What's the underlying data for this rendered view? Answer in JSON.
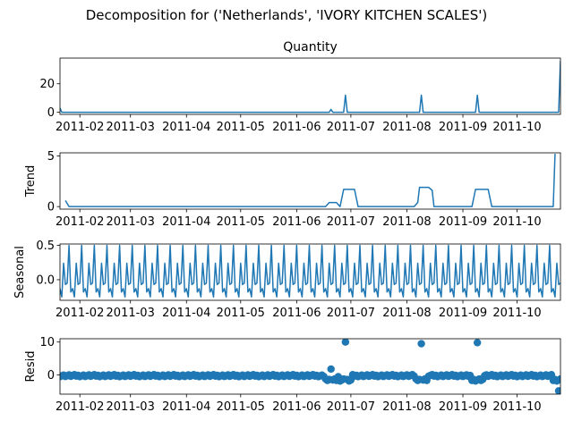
{
  "title": "Decomposition for ('Netherlands', 'IVORY KITCHEN SCALES')",
  "color": "#1f77b4",
  "chart_data": [
    {
      "type": "line",
      "title": "Quantity",
      "ylabel": "",
      "x_range": [
        "2011-01-21",
        "2011-10-25"
      ],
      "ylim": [
        -1.5,
        38
      ],
      "yticks": [
        0,
        20
      ],
      "spikes": [
        {
          "date": "2011-06-20",
          "value": 2
        },
        {
          "date": "2011-06-28",
          "value": 12
        },
        {
          "date": "2011-08-09",
          "value": 12
        },
        {
          "date": "2011-09-09",
          "value": 12
        }
      ],
      "edges": {
        "start": 3,
        "end": 36
      }
    },
    {
      "type": "line",
      "title": "",
      "ylabel": "Trend",
      "ylim": [
        -0.25,
        5.3
      ],
      "yticks": [
        0,
        5
      ],
      "points": [
        [
          "2011-01-24",
          0.6
        ],
        [
          "2011-01-26",
          0
        ],
        [
          "2011-06-17",
          0
        ],
        [
          "2011-06-19",
          0.4
        ],
        [
          "2011-06-23",
          0.4
        ],
        [
          "2011-06-25",
          0
        ],
        [
          "2011-06-27",
          1.7
        ],
        [
          "2011-07-03",
          1.7
        ],
        [
          "2011-07-05",
          0
        ],
        [
          "2011-08-05",
          0
        ],
        [
          "2011-08-07",
          0.4
        ],
        [
          "2011-08-08",
          1.9
        ],
        [
          "2011-08-13",
          1.9
        ],
        [
          "2011-08-15",
          1.6
        ],
        [
          "2011-08-16",
          0
        ],
        [
          "2011-09-06",
          0
        ],
        [
          "2011-09-08",
          1.7
        ],
        [
          "2011-09-15",
          1.7
        ],
        [
          "2011-09-17",
          0
        ],
        [
          "2011-10-21",
          0
        ],
        [
          "2011-10-22",
          5.2
        ]
      ]
    },
    {
      "type": "line",
      "title": "",
      "ylabel": "Seasonal",
      "ylim": [
        -0.3,
        0.52
      ],
      "yticks": [
        -0.0,
        0.5
      ],
      "ytick_labels": [
        "0.0",
        "0.5"
      ],
      "period_days": 7,
      "weekly_pattern": [
        -0.13,
        -0.25,
        0.24,
        -0.07,
        -0.05,
        0.5,
        -0.18
      ]
    },
    {
      "type": "scatter",
      "title": "",
      "ylabel": "Resid",
      "ylim": [
        -5.8,
        11
      ],
      "yticks": [
        0,
        10
      ],
      "outliers": [
        {
          "date": "2011-06-20",
          "value": 1.8
        },
        {
          "date": "2011-06-28",
          "value": 10
        },
        {
          "date": "2011-08-09",
          "value": 9.5
        },
        {
          "date": "2011-09-09",
          "value": 9.8
        },
        {
          "date": "2011-10-24",
          "value": -4.8
        }
      ]
    }
  ],
  "x_tick_labels": [
    "2011-02",
    "2011-03",
    "2011-04",
    "2011-05",
    "2011-06",
    "2011-07",
    "2011-08",
    "2011-09",
    "2011-10"
  ],
  "x_tick_dates": [
    "2011-02-01",
    "2011-03-01",
    "2011-04-01",
    "2011-05-01",
    "2011-06-01",
    "2011-07-01",
    "2011-08-01",
    "2011-09-01",
    "2011-10-01"
  ]
}
